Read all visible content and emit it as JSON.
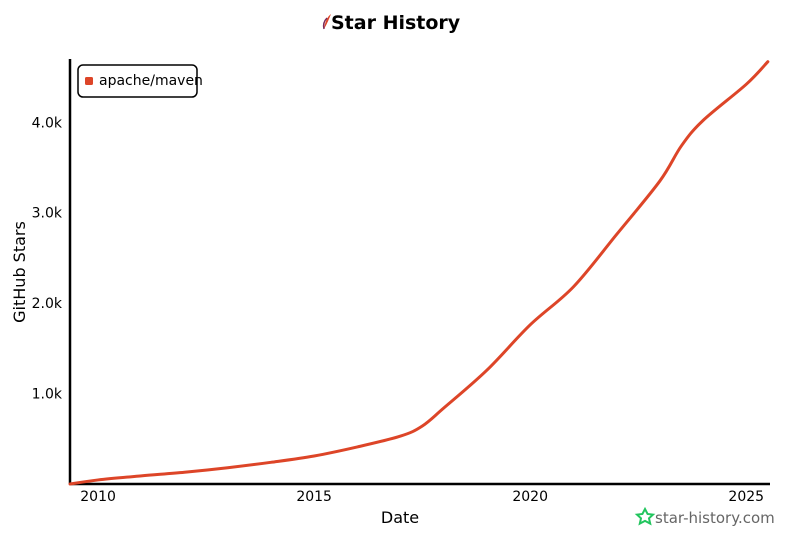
{
  "chart_data": {
    "type": "line",
    "title": "Star History",
    "xlabel": "Date",
    "ylabel": "GitHub Stars",
    "x_ticks": [
      "2010",
      "2015",
      "2020",
      "2025"
    ],
    "y_ticks": [
      "1.0k",
      "2.0k",
      "3.0k",
      "4.0k"
    ],
    "xlim": [
      2009.35,
      2025.55
    ],
    "ylim": [
      0,
      4700
    ],
    "grid": false,
    "legend_position": "top-left",
    "series": [
      {
        "name": "apache/maven",
        "color": "#dd4528",
        "x": [
          2009.35,
          2010,
          2011,
          2012,
          2013,
          2014,
          2015,
          2016,
          2017,
          2017.5,
          2018,
          2019,
          2020,
          2021,
          2022,
          2023,
          2023.5,
          2024,
          2025,
          2025.5
        ],
        "y": [
          0,
          45,
          90,
          130,
          180,
          240,
          310,
          410,
          530,
          640,
          840,
          1260,
          1760,
          2180,
          2760,
          3350,
          3740,
          4020,
          4420,
          4670
        ]
      }
    ]
  },
  "watermark": {
    "text": "star-history.com",
    "icon": "star-outline-icon",
    "color": "#22c55e"
  },
  "logo": {
    "icon": "feather-pen-icon"
  }
}
